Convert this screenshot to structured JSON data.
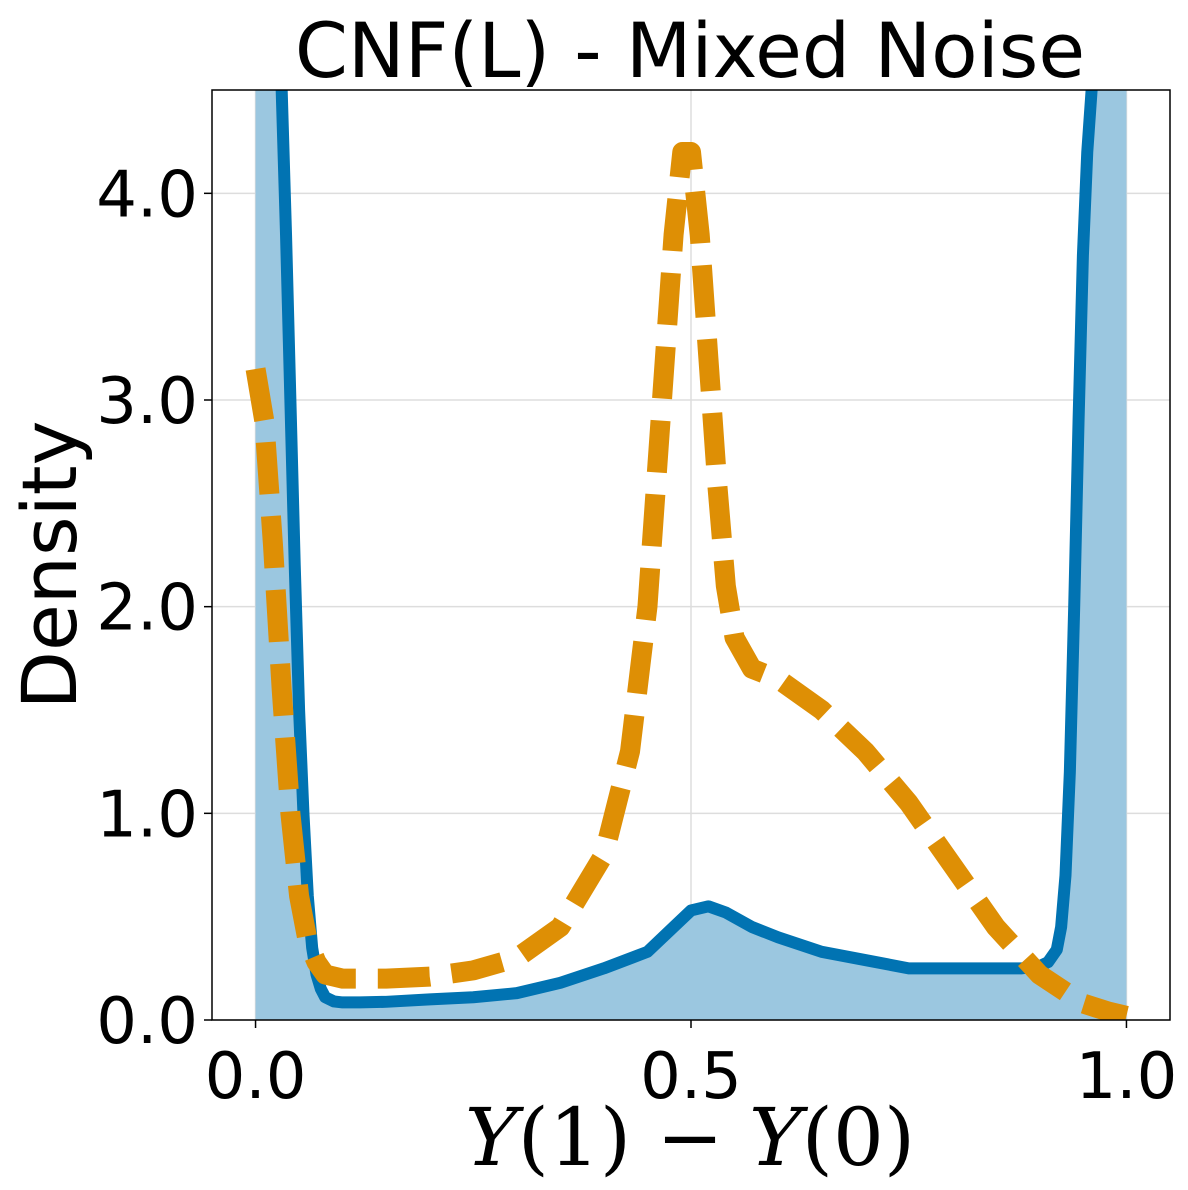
{
  "chart_data": {
    "type": "line",
    "title": "CNF(L) - Mixed Noise",
    "xlabel": "Y(1) − Y(0)",
    "xlabel_parts": [
      "Y",
      "(1) − ",
      "Y",
      "(0)"
    ],
    "ylabel": "Density",
    "xlim": [
      -0.05,
      1.05
    ],
    "ylim": [
      0,
      4.5
    ],
    "xticks": [
      0.0,
      0.5,
      1.0
    ],
    "xtick_labels": [
      "0.0",
      "0.5",
      "1.0"
    ],
    "yticks": [
      0.0,
      1.0,
      2.0,
      3.0,
      4.0
    ],
    "ytick_labels": [
      "0.0",
      "1.0",
      "2.0",
      "3.0",
      "4.0"
    ],
    "grid": true,
    "colors": {
      "solid": "#0173b2",
      "fill": "#9bc7e0",
      "dashed": "#de8f05"
    },
    "series": [
      {
        "style": "solid-filled",
        "x": [
          0.03,
          0.035,
          0.04,
          0.045,
          0.05,
          0.055,
          0.06,
          0.065,
          0.07,
          0.075,
          0.08,
          0.09,
          0.1,
          0.12,
          0.15,
          0.2,
          0.25,
          0.3,
          0.35,
          0.4,
          0.45,
          0.48,
          0.5,
          0.52,
          0.54,
          0.57,
          0.6,
          0.65,
          0.7,
          0.75,
          0.8,
          0.85,
          0.88,
          0.9,
          0.91,
          0.92,
          0.925,
          0.93,
          0.935,
          0.94,
          0.945,
          0.95,
          0.955,
          0.96
        ],
        "y": [
          4.5,
          3.8,
          3.0,
          2.2,
          1.5,
          1.0,
          0.6,
          0.35,
          0.22,
          0.15,
          0.11,
          0.09,
          0.085,
          0.085,
          0.088,
          0.1,
          0.11,
          0.13,
          0.18,
          0.25,
          0.33,
          0.45,
          0.53,
          0.55,
          0.52,
          0.45,
          0.4,
          0.33,
          0.29,
          0.25,
          0.25,
          0.25,
          0.25,
          0.26,
          0.28,
          0.34,
          0.45,
          0.7,
          1.2,
          2.0,
          2.9,
          3.7,
          4.2,
          4.5
        ]
      },
      {
        "style": "dashed",
        "x": [
          0.0,
          0.01,
          0.02,
          0.03,
          0.04,
          0.05,
          0.06,
          0.07,
          0.08,
          0.1,
          0.15,
          0.2,
          0.25,
          0.3,
          0.35,
          0.4,
          0.43,
          0.45,
          0.46,
          0.47,
          0.48,
          0.49,
          0.5,
          0.51,
          0.52,
          0.53,
          0.54,
          0.55,
          0.57,
          0.6,
          0.65,
          0.7,
          0.75,
          0.8,
          0.85,
          0.9,
          0.95,
          0.98,
          1.0
        ],
        "y": [
          3.15,
          2.9,
          2.3,
          1.6,
          1.0,
          0.6,
          0.38,
          0.28,
          0.22,
          0.2,
          0.2,
          0.21,
          0.24,
          0.3,
          0.45,
          0.8,
          1.3,
          2.0,
          2.6,
          3.2,
          3.8,
          4.2,
          4.2,
          3.8,
          3.2,
          2.6,
          2.1,
          1.85,
          1.7,
          1.65,
          1.5,
          1.3,
          1.05,
          0.75,
          0.45,
          0.22,
          0.08,
          0.04,
          0.02
        ]
      }
    ]
  }
}
